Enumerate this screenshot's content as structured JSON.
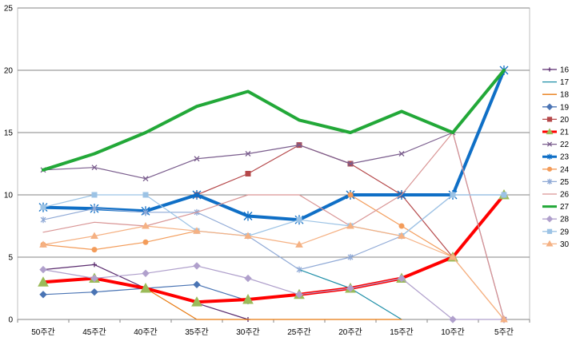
{
  "chart_data": {
    "type": "line",
    "categories": [
      "50주간",
      "45주간",
      "40주간",
      "35주간",
      "30주간",
      "25주간",
      "20주간",
      "15주간",
      "10주간",
      "5주간"
    ],
    "ylim": [
      0,
      25
    ],
    "yticks": [
      0,
      5,
      10,
      15,
      20,
      25
    ],
    "grid": true,
    "legend_position": "right",
    "series": [
      {
        "name": "16",
        "color": "#5b2c6f",
        "marker": "plus",
        "width": 1.2,
        "values": [
          4,
          4.4,
          2.5,
          1.3,
          0,
          null,
          null,
          null,
          null,
          null
        ]
      },
      {
        "name": "17",
        "color": "#1f8fa8",
        "marker": "none",
        "width": 1.2,
        "values": [
          null,
          null,
          null,
          null,
          null,
          4,
          2.5,
          0,
          null,
          null
        ]
      },
      {
        "name": "18",
        "color": "#e8790f",
        "marker": "none",
        "width": 1.2,
        "values": [
          null,
          null,
          2.5,
          0,
          0,
          0,
          0,
          0,
          null,
          null
        ]
      },
      {
        "name": "19",
        "color": "#4a74b4",
        "marker": "diamond",
        "width": 1.2,
        "values": [
          2,
          2.2,
          2.5,
          2.8,
          1.5,
          null,
          null,
          null,
          null,
          null
        ]
      },
      {
        "name": "20",
        "color": "#b5484a",
        "marker": "square",
        "width": 1.2,
        "values": [
          null,
          null,
          null,
          10,
          11.7,
          14,
          12.5,
          10,
          5,
          null
        ]
      },
      {
        "name": "21",
        "color": "#ff0000",
        "marker": "triangle",
        "width": 4,
        "values": [
          3,
          3.3,
          2.5,
          1.4,
          1.6,
          2,
          2.5,
          3.3,
          5,
          10
        ]
      },
      {
        "name": "22",
        "color": "#7b5e8e",
        "marker": "x",
        "width": 1.2,
        "values": [
          12,
          12.2,
          11.3,
          12.9,
          13.3,
          14,
          12.5,
          13.3,
          15,
          0
        ]
      },
      {
        "name": "23",
        "color": "#0f6fc6",
        "marker": "star",
        "width": 4,
        "values": [
          9,
          8.9,
          8.7,
          10,
          8.3,
          8,
          10,
          10,
          10,
          20
        ]
      },
      {
        "name": "24",
        "color": "#f39c5a",
        "marker": "circle",
        "width": 1.2,
        "values": [
          6,
          5.6,
          6.2,
          7.1,
          null,
          null,
          10,
          7.5,
          5,
          0
        ]
      },
      {
        "name": "25",
        "color": "#8fa9d6",
        "marker": "star",
        "width": 1.2,
        "values": [
          8,
          8.9,
          8.6,
          8.6,
          6.7,
          4,
          5,
          6.7,
          10,
          10
        ]
      },
      {
        "name": "26",
        "color": "#d99595",
        "marker": "none",
        "width": 1.2,
        "values": [
          7,
          7.8,
          7.5,
          8.6,
          10,
          10,
          7.5,
          10,
          15,
          0
        ]
      },
      {
        "name": "27",
        "color": "#22a838",
        "marker": "none",
        "width": 4,
        "values": [
          12,
          13.3,
          15,
          17.1,
          18.3,
          16,
          15,
          16.7,
          15,
          20
        ]
      },
      {
        "name": "28",
        "color": "#b0a0cc",
        "marker": "diamond",
        "width": 1.2,
        "values": [
          4,
          3.3,
          3.7,
          4.3,
          3.3,
          2,
          2.5,
          3.3,
          0,
          0
        ]
      },
      {
        "name": "29",
        "color": "#9cc3e5",
        "marker": "square",
        "width": 1.2,
        "values": [
          9,
          10,
          10,
          7.1,
          6.7,
          8,
          7.5,
          6.7,
          10,
          10
        ]
      },
      {
        "name": "30",
        "color": "#f5b183",
        "marker": "triangle",
        "width": 1.2,
        "values": [
          6,
          6.7,
          7.5,
          7.1,
          6.7,
          6,
          7.5,
          6.7,
          5,
          0
        ]
      }
    ]
  }
}
